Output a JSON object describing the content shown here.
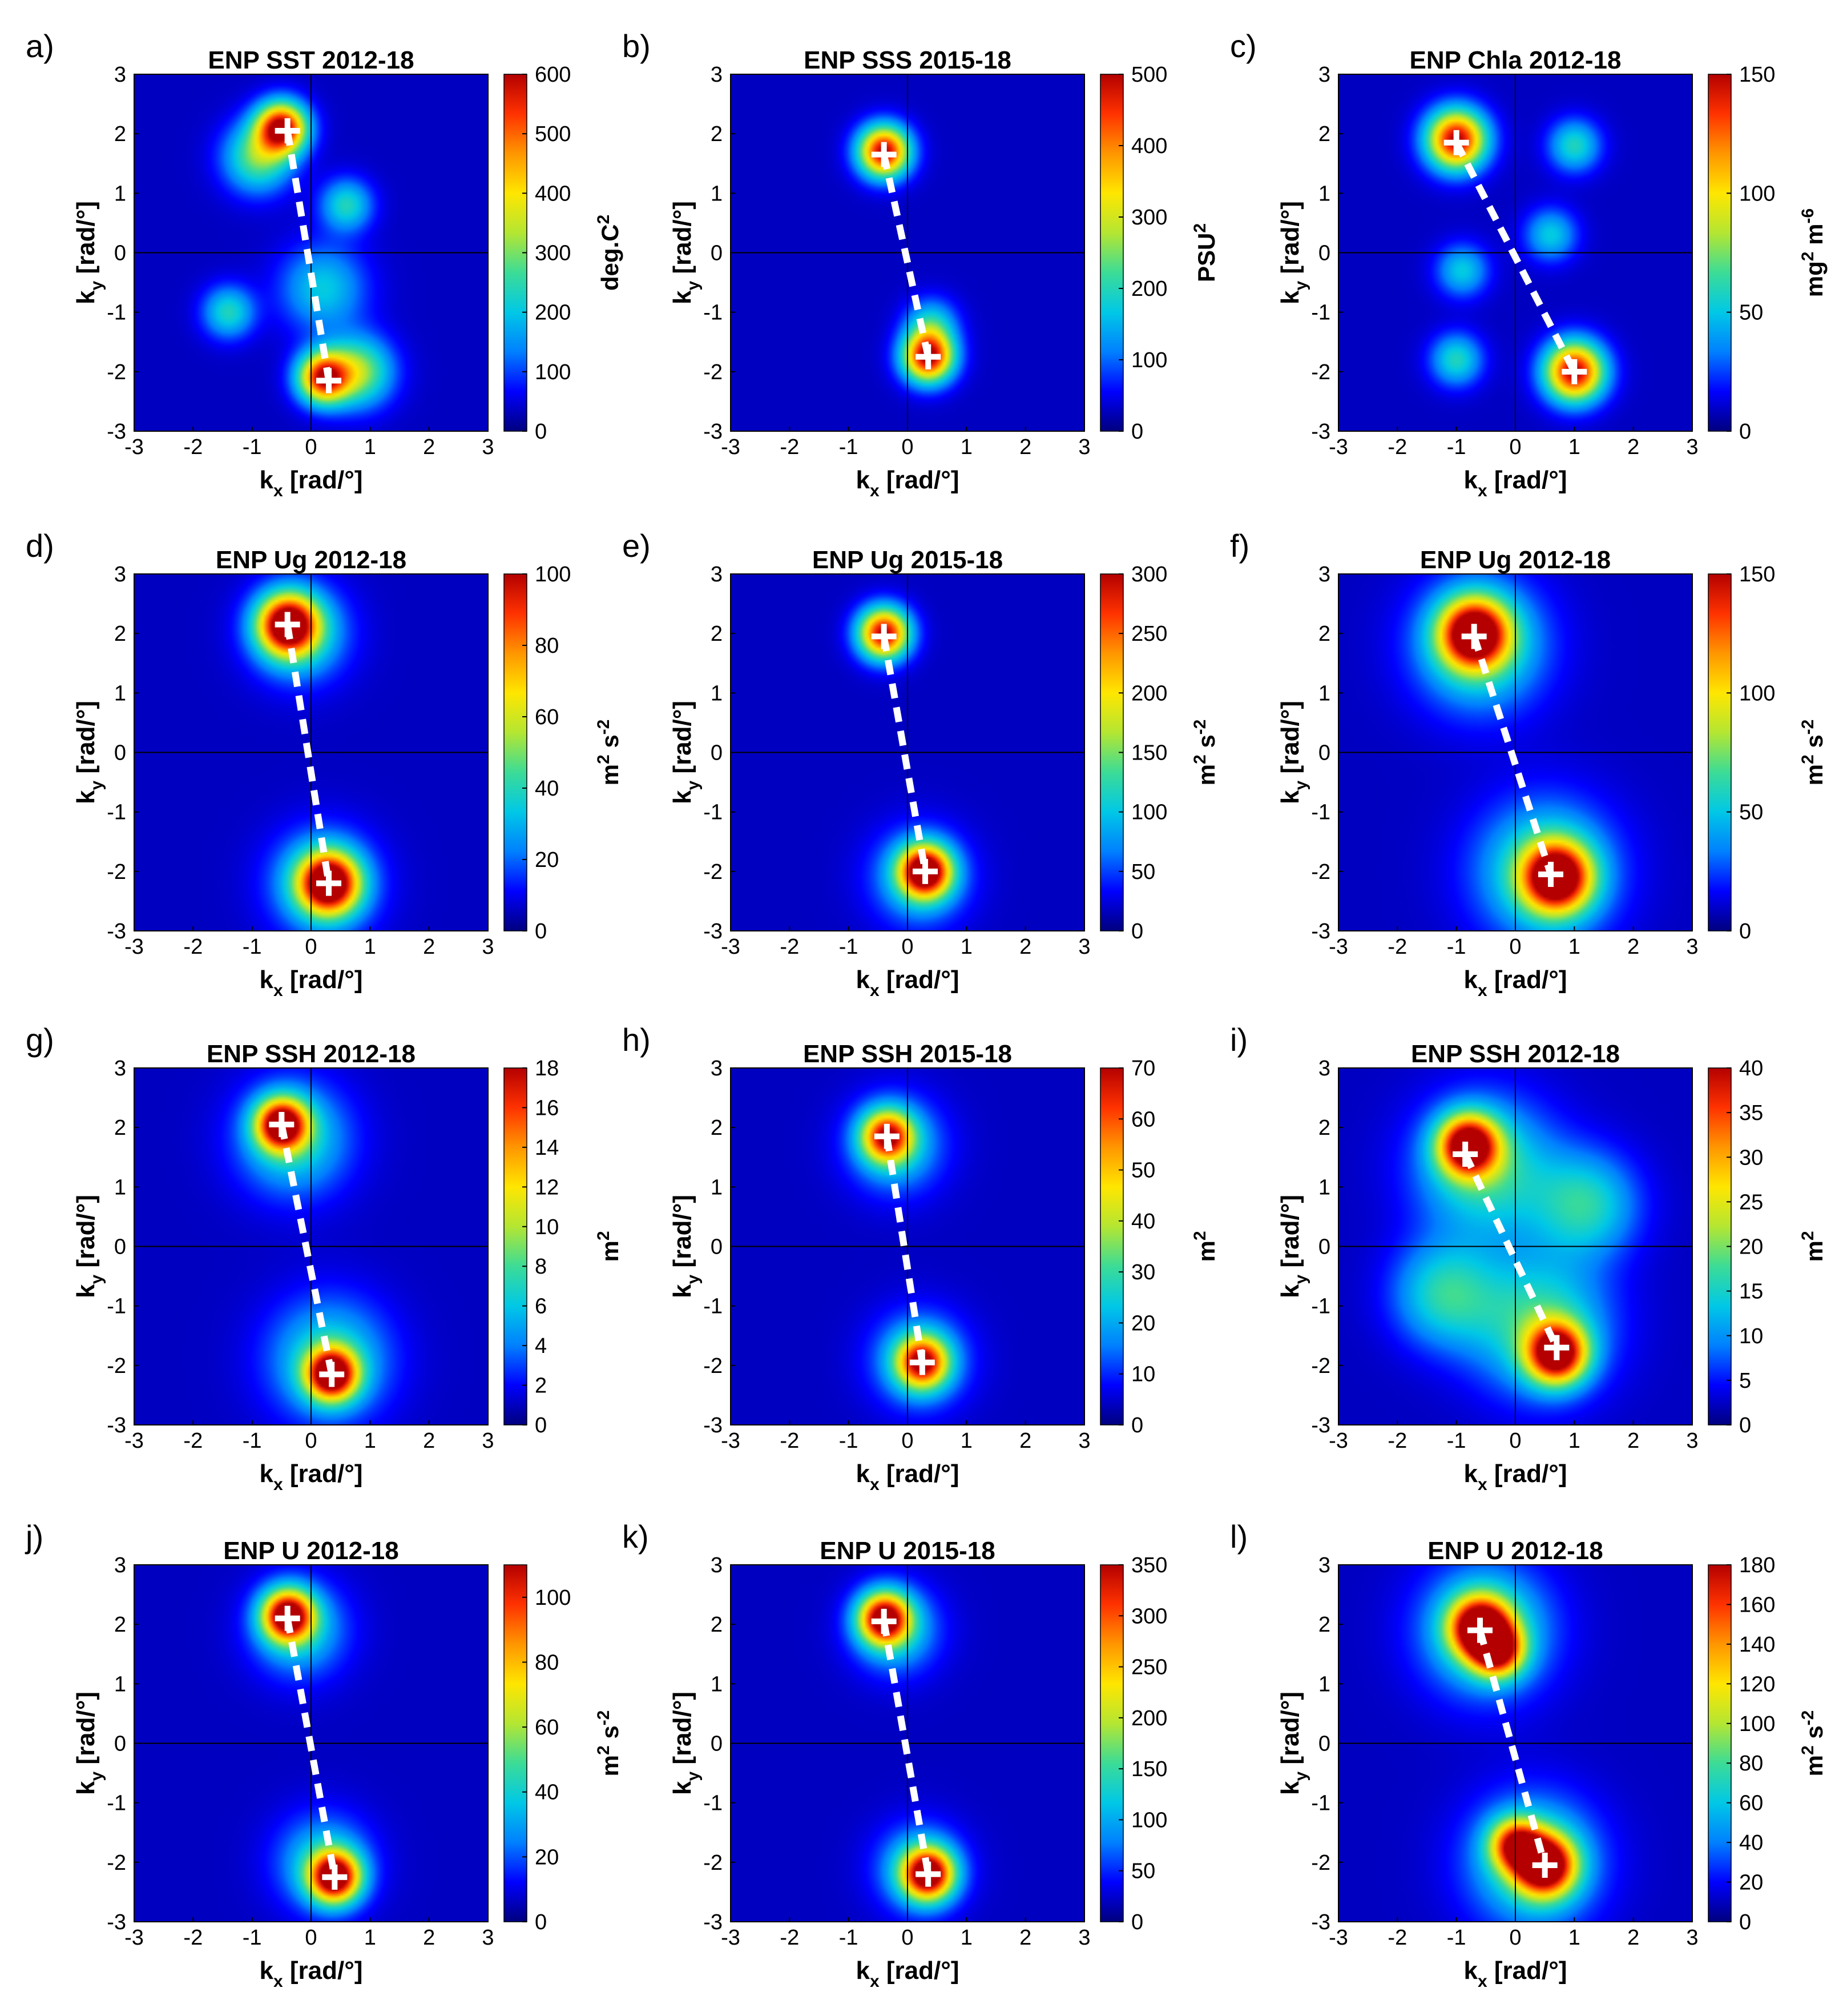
{
  "figure": {
    "axis_title_x_main": "k",
    "axis_title_x_sub": "x",
    "axis_title_y_main": "k",
    "axis_title_y_sub": "y",
    "axis_unit": "[rad/°]"
  },
  "colors": {
    "cmap": [
      "#00007f",
      "#0000ff",
      "#0080ff",
      "#00c8e6",
      "#3cdc96",
      "#b4e632",
      "#ffe600",
      "#ff9600",
      "#ff3200",
      "#b40000"
    ],
    "marker": "#ffffff",
    "axis": "#000000"
  },
  "chart_data": [
    {
      "label": "a)",
      "type": "heatmap",
      "title": "ENP SST 2012-18",
      "xlim": [
        -3,
        3
      ],
      "ylim": [
        -3,
        3
      ],
      "xticks": [
        "-3",
        "-2",
        "-1",
        "0",
        "1",
        "2",
        "3"
      ],
      "yticks": [
        "3",
        "2",
        "1",
        "0",
        "-1",
        "-2",
        "-3"
      ],
      "clim": [
        0,
        600
      ],
      "cticks": [
        "600",
        "500",
        "400",
        "300",
        "200",
        "100",
        "0"
      ],
      "cunit_main": "deg.C",
      "cunit_sup": "2",
      "peaks": [
        {
          "kx": -0.4,
          "ky": 2.05
        },
        {
          "kx": 0.3,
          "ky": -2.15
        }
      ],
      "blobs": [
        {
          "kx": -0.5,
          "ky": 2.1,
          "s": 0.3,
          "a": 1.0
        },
        {
          "kx": -0.9,
          "ky": 1.6,
          "s": 0.4,
          "a": 0.45
        },
        {
          "kx": 0.2,
          "ky": -2.1,
          "s": 0.3,
          "a": 0.9
        },
        {
          "kx": 0.8,
          "ky": -2.0,
          "s": 0.4,
          "a": 0.5
        },
        {
          "kx": 0.6,
          "ky": 0.8,
          "s": 0.3,
          "a": 0.35
        },
        {
          "kx": 0.2,
          "ky": -0.6,
          "s": 0.5,
          "a": 0.3
        },
        {
          "kx": -1.4,
          "ky": -1.0,
          "s": 0.3,
          "a": 0.35
        }
      ]
    },
    {
      "label": "b)",
      "type": "heatmap",
      "title": "ENP SSS 2015-18",
      "xlim": [
        -3,
        3
      ],
      "ylim": [
        -3,
        3
      ],
      "xticks": [
        "-3",
        "-2",
        "-1",
        "0",
        "1",
        "2",
        "3"
      ],
      "yticks": [
        "3",
        "2",
        "1",
        "0",
        "-1",
        "-2",
        "-3"
      ],
      "clim": [
        0,
        500
      ],
      "cticks": [
        "500",
        "400",
        "300",
        "200",
        "100",
        "0"
      ],
      "cunit_main": "PSU",
      "cunit_sup": "2",
      "peaks": [
        {
          "kx": -0.4,
          "ky": 1.65
        },
        {
          "kx": 0.35,
          "ky": -1.75
        }
      ],
      "blobs": [
        {
          "kx": -0.4,
          "ky": 1.7,
          "s": 0.3,
          "a": 1.0
        },
        {
          "kx": 0.35,
          "ky": -1.75,
          "s": 0.3,
          "a": 1.0
        },
        {
          "kx": 0.4,
          "ky": -1.2,
          "s": 0.3,
          "a": 0.3
        }
      ]
    },
    {
      "label": "c)",
      "type": "heatmap",
      "title": "ENP Chla 2012-18",
      "xlim": [
        -3,
        3
      ],
      "ylim": [
        -3,
        3
      ],
      "xticks": [
        "-3",
        "-2",
        "-1",
        "0",
        "1",
        "2",
        "3"
      ],
      "yticks": [
        "3",
        "2",
        "1",
        "0",
        "-1",
        "-2",
        "-3"
      ],
      "clim": [
        0,
        150
      ],
      "cticks": [
        "150",
        "100",
        "50",
        "0"
      ],
      "cunit_main": "mg",
      "cunit_sup": "2",
      "cunit_main2": " m",
      "cunit_sup2": "-6",
      "peaks": [
        {
          "kx": -1.0,
          "ky": 1.85
        },
        {
          "kx": 1.0,
          "ky": -2.0
        }
      ],
      "blobs": [
        {
          "kx": -1.0,
          "ky": 1.9,
          "s": 0.35,
          "a": 1.0
        },
        {
          "kx": 1.0,
          "ky": -2.0,
          "s": 0.35,
          "a": 1.0
        },
        {
          "kx": 1.0,
          "ky": 1.8,
          "s": 0.3,
          "a": 0.35
        },
        {
          "kx": -1.0,
          "ky": -1.8,
          "s": 0.3,
          "a": 0.35
        },
        {
          "kx": 0.6,
          "ky": 0.3,
          "s": 0.3,
          "a": 0.3
        },
        {
          "kx": -0.9,
          "ky": -0.3,
          "s": 0.3,
          "a": 0.3
        }
      ]
    },
    {
      "label": "d)",
      "type": "heatmap",
      "title": "ENP Ug 2012-18",
      "xlim": [
        -3,
        3
      ],
      "ylim": [
        -3,
        3
      ],
      "xticks": [
        "-3",
        "-2",
        "-1",
        "0",
        "1",
        "2",
        "3"
      ],
      "yticks": [
        "3",
        "2",
        "1",
        "0",
        "-1",
        "-2",
        "-3"
      ],
      "clim": [
        0,
        100
      ],
      "cticks": [
        "100",
        "80",
        "60",
        "40",
        "20",
        "0"
      ],
      "cunit_main": "m",
      "cunit_sup": "2",
      "cunit_main2": " s",
      "cunit_sup2": "-2",
      "peaks": [
        {
          "kx": -0.4,
          "ky": 2.15
        },
        {
          "kx": 0.3,
          "ky": -2.2
        }
      ],
      "blobs": [
        {
          "kx": -0.4,
          "ky": 2.15,
          "s": 0.35,
          "a": 1.0
        },
        {
          "kx": 0.3,
          "ky": -2.2,
          "s": 0.35,
          "a": 1.0
        },
        {
          "kx": -0.2,
          "ky": 2.0,
          "s": 0.55,
          "a": 0.35
        },
        {
          "kx": 0.2,
          "ky": -2.2,
          "s": 0.6,
          "a": 0.35
        }
      ]
    },
    {
      "label": "e)",
      "type": "heatmap",
      "title": "ENP Ug 2015-18",
      "xlim": [
        -3,
        3
      ],
      "ylim": [
        -3,
        3
      ],
      "xticks": [
        "-3",
        "-2",
        "-1",
        "0",
        "1",
        "2",
        "3"
      ],
      "yticks": [
        "3",
        "2",
        "1",
        "0",
        "-1",
        "-2",
        "-3"
      ],
      "clim": [
        0,
        300
      ],
      "cticks": [
        "300",
        "250",
        "200",
        "150",
        "100",
        "50",
        "0"
      ],
      "cunit_main": "m",
      "cunit_sup": "2",
      "cunit_main2": " s",
      "cunit_sup2": "-2",
      "peaks": [
        {
          "kx": -0.4,
          "ky": 1.95
        },
        {
          "kx": 0.3,
          "ky": -2.0
        }
      ],
      "blobs": [
        {
          "kx": -0.4,
          "ky": 2.0,
          "s": 0.3,
          "a": 1.0
        },
        {
          "kx": 0.3,
          "ky": -2.0,
          "s": 0.3,
          "a": 1.0
        },
        {
          "kx": 0.2,
          "ky": -2.1,
          "s": 0.55,
          "a": 0.3
        }
      ]
    },
    {
      "label": "f)",
      "type": "heatmap",
      "title": "ENP Ug 2012-18",
      "xlim": [
        -3,
        3
      ],
      "ylim": [
        -3,
        3
      ],
      "xticks": [
        "-3",
        "-2",
        "-1",
        "0",
        "1",
        "2",
        "3"
      ],
      "yticks": [
        "3",
        "2",
        "1",
        "0",
        "-1",
        "-2",
        "-3"
      ],
      "clim": [
        0,
        150
      ],
      "cticks": [
        "150",
        "100",
        "50",
        "0"
      ],
      "cunit_main": "m",
      "cunit_sup": "2",
      "cunit_main2": " s",
      "cunit_sup2": "-2",
      "peaks": [
        {
          "kx": -0.7,
          "ky": 1.95
        },
        {
          "kx": 0.6,
          "ky": -2.05
        }
      ],
      "blobs": [
        {
          "kx": -0.7,
          "ky": 2.0,
          "s": 0.4,
          "a": 1.0
        },
        {
          "kx": 0.7,
          "ky": -2.1,
          "s": 0.4,
          "a": 1.0
        },
        {
          "kx": -0.6,
          "ky": 1.8,
          "s": 0.75,
          "a": 0.4
        },
        {
          "kx": 0.5,
          "ky": -2.0,
          "s": 0.8,
          "a": 0.4
        }
      ]
    },
    {
      "label": "g)",
      "type": "heatmap",
      "title": "ENP SSH 2012-18",
      "xlim": [
        -3,
        3
      ],
      "ylim": [
        -3,
        3
      ],
      "xticks": [
        "-3",
        "-2",
        "-1",
        "0",
        "1",
        "2",
        "3"
      ],
      "yticks": [
        "3",
        "2",
        "1",
        "0",
        "-1",
        "-2",
        "-3"
      ],
      "clim": [
        0,
        18
      ],
      "cticks": [
        "18",
        "16",
        "14",
        "12",
        "10",
        "8",
        "6",
        "4",
        "2",
        "0"
      ],
      "cunit_main": "m",
      "cunit_sup": "2",
      "peaks": [
        {
          "kx": -0.5,
          "ky": 2.05
        },
        {
          "kx": 0.35,
          "ky": -2.15
        }
      ],
      "blobs": [
        {
          "kx": -0.5,
          "ky": 2.05,
          "s": 0.3,
          "a": 1.0
        },
        {
          "kx": 0.35,
          "ky": -2.15,
          "s": 0.3,
          "a": 1.0
        },
        {
          "kx": -0.3,
          "ky": 1.8,
          "s": 0.65,
          "a": 0.35
        },
        {
          "kx": 0.3,
          "ky": -1.9,
          "s": 0.7,
          "a": 0.35
        }
      ]
    },
    {
      "label": "h)",
      "type": "heatmap",
      "title": "ENP SSH 2015-18",
      "xlim": [
        -3,
        3
      ],
      "ylim": [
        -3,
        3
      ],
      "xticks": [
        "-3",
        "-2",
        "-1",
        "0",
        "1",
        "2",
        "3"
      ],
      "yticks": [
        "3",
        "2",
        "1",
        "0",
        "-1",
        "-2",
        "-3"
      ],
      "clim": [
        0,
        70
      ],
      "cticks": [
        "70",
        "60",
        "50",
        "40",
        "30",
        "20",
        "10",
        "0"
      ],
      "cunit_main": "m",
      "cunit_sup": "2",
      "peaks": [
        {
          "kx": -0.35,
          "ky": 1.85
        },
        {
          "kx": 0.25,
          "ky": -1.95
        }
      ],
      "blobs": [
        {
          "kx": -0.35,
          "ky": 1.85,
          "s": 0.3,
          "a": 0.8
        },
        {
          "kx": 0.25,
          "ky": -1.95,
          "s": 0.3,
          "a": 0.8
        },
        {
          "kx": -0.2,
          "ky": 1.7,
          "s": 0.55,
          "a": 0.3
        },
        {
          "kx": 0.2,
          "ky": -1.9,
          "s": 0.55,
          "a": 0.3
        }
      ]
    },
    {
      "label": "i)",
      "type": "heatmap",
      "title": "ENP SSH 2012-18",
      "xlim": [
        -3,
        3
      ],
      "ylim": [
        -3,
        3
      ],
      "xticks": [
        "-3",
        "-2",
        "-1",
        "0",
        "1",
        "2",
        "3"
      ],
      "yticks": [
        "3",
        "2",
        "1",
        "0",
        "-1",
        "-2",
        "-3"
      ],
      "clim": [
        0,
        40
      ],
      "cticks": [
        "40",
        "35",
        "30",
        "25",
        "20",
        "15",
        "10",
        "5",
        "0"
      ],
      "cunit_main": "m",
      "cunit_sup": "2",
      "peaks": [
        {
          "kx": -0.85,
          "ky": 1.55
        },
        {
          "kx": 0.7,
          "ky": -1.7
        }
      ],
      "blobs": [
        {
          "kx": -0.8,
          "ky": 1.7,
          "s": 0.35,
          "a": 1.0
        },
        {
          "kx": 0.7,
          "ky": -1.8,
          "s": 0.35,
          "a": 1.0
        },
        {
          "kx": -0.5,
          "ky": 1.3,
          "s": 0.8,
          "a": 0.4
        },
        {
          "kx": 0.4,
          "ky": -1.3,
          "s": 0.8,
          "a": 0.4
        },
        {
          "kx": 1.2,
          "ky": 0.7,
          "s": 0.6,
          "a": 0.35
        },
        {
          "kx": -1.2,
          "ky": -0.8,
          "s": 0.6,
          "a": 0.35
        }
      ]
    },
    {
      "label": "j)",
      "type": "heatmap",
      "title": "ENP U 2012-18",
      "xlim": [
        -3,
        3
      ],
      "ylim": [
        -3,
        3
      ],
      "xticks": [
        "-3",
        "-2",
        "-1",
        "0",
        "1",
        "2",
        "3"
      ],
      "yticks": [
        "3",
        "2",
        "1",
        "0",
        "-1",
        "-2",
        "-3"
      ],
      "clim": [
        0,
        110
      ],
      "cticks": [
        "100",
        "80",
        "60",
        "40",
        "20",
        "0"
      ],
      "cunit_main": "m",
      "cunit_sup": "2",
      "cunit_main2": " s",
      "cunit_sup2": "-2",
      "peaks": [
        {
          "kx": -0.4,
          "ky": 2.1
        },
        {
          "kx": 0.4,
          "ky": -2.25
        }
      ],
      "blobs": [
        {
          "kx": -0.4,
          "ky": 2.15,
          "s": 0.3,
          "a": 1.0
        },
        {
          "kx": 0.4,
          "ky": -2.25,
          "s": 0.3,
          "a": 1.0
        },
        {
          "kx": -0.2,
          "ky": 1.9,
          "s": 0.55,
          "a": 0.3
        },
        {
          "kx": 0.2,
          "ky": -2.0,
          "s": 0.55,
          "a": 0.3
        }
      ]
    },
    {
      "label": "k)",
      "type": "heatmap",
      "title": "ENP U 2015-18",
      "xlim": [
        -3,
        3
      ],
      "ylim": [
        -3,
        3
      ],
      "xticks": [
        "-3",
        "-2",
        "-1",
        "0",
        "1",
        "2",
        "3"
      ],
      "yticks": [
        "3",
        "2",
        "1",
        "0",
        "-1",
        "-2",
        "-3"
      ],
      "clim": [
        0,
        350
      ],
      "cticks": [
        "350",
        "300",
        "250",
        "200",
        "150",
        "100",
        "50",
        "0"
      ],
      "cunit_main": "",
      "cunit_sup": "",
      "peaks": [
        {
          "kx": -0.4,
          "ky": 2.05
        },
        {
          "kx": 0.35,
          "ky": -2.2
        }
      ],
      "blobs": [
        {
          "kx": -0.4,
          "ky": 2.1,
          "s": 0.3,
          "a": 0.95
        },
        {
          "kx": 0.35,
          "ky": -2.2,
          "s": 0.3,
          "a": 0.95
        },
        {
          "kx": -0.2,
          "ky": 1.9,
          "s": 0.5,
          "a": 0.3
        },
        {
          "kx": 0.2,
          "ky": -2.1,
          "s": 0.5,
          "a": 0.3
        }
      ]
    },
    {
      "label": "l)",
      "type": "heatmap",
      "title": "ENP U 2012-18",
      "xlim": [
        -3,
        3
      ],
      "ylim": [
        -3,
        3
      ],
      "xticks": [
        "-3",
        "-2",
        "-1",
        "0",
        "1",
        "2",
        "3"
      ],
      "yticks": [
        "3",
        "2",
        "1",
        "0",
        "-1",
        "-2",
        "-3"
      ],
      "clim": [
        0,
        180
      ],
      "cticks": [
        "180",
        "160",
        "140",
        "120",
        "100",
        "80",
        "60",
        "40",
        "20",
        "0"
      ],
      "cunit_main": "m",
      "cunit_sup": "2",
      "cunit_main2": " s",
      "cunit_sup2": "-2",
      "peaks": [
        {
          "kx": -0.6,
          "ky": 1.9
        },
        {
          "kx": 0.5,
          "ky": -2.05
        }
      ],
      "blobs": [
        {
          "kx": -0.6,
          "ky": 1.95,
          "s": 0.35,
          "a": 1.0
        },
        {
          "kx": -0.3,
          "ky": 1.55,
          "s": 0.3,
          "a": 0.75
        },
        {
          "kx": 0.5,
          "ky": -2.05,
          "s": 0.35,
          "a": 1.0
        },
        {
          "kx": 0.0,
          "ky": -1.7,
          "s": 0.3,
          "a": 0.7
        },
        {
          "kx": -0.5,
          "ky": 1.9,
          "s": 0.75,
          "a": 0.4
        },
        {
          "kx": 0.3,
          "ky": -2.0,
          "s": 0.75,
          "a": 0.4
        }
      ]
    }
  ]
}
